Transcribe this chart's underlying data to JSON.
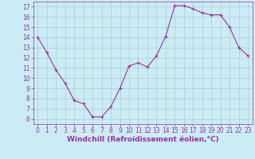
{
  "x": [
    0,
    1,
    2,
    3,
    4,
    5,
    6,
    7,
    8,
    9,
    10,
    11,
    12,
    13,
    14,
    15,
    16,
    17,
    18,
    19,
    20,
    21,
    22,
    23
  ],
  "y": [
    14,
    12.5,
    10.8,
    9.5,
    7.8,
    7.5,
    6.2,
    6.2,
    7.2,
    9.0,
    11.2,
    11.5,
    11.1,
    12.2,
    14.1,
    17.1,
    17.1,
    16.8,
    16.4,
    16.2,
    16.2,
    15.0,
    13.0,
    12.2
  ],
  "line_color": "#993399",
  "marker": "+",
  "marker_color": "#993399",
  "bg_color": "#cbecf5",
  "grid_color": "#aacccc",
  "xlabel": "Windchill (Refroidissement éolien,°C)",
  "xlabel_color": "#993399",
  "tick_color": "#993399",
  "spine_color": "#993399",
  "xlim": [
    -0.5,
    23.5
  ],
  "ylim": [
    5.5,
    17.5
  ],
  "yticks": [
    6,
    7,
    8,
    9,
    10,
    11,
    12,
    13,
    14,
    15,
    16,
    17
  ],
  "xticks": [
    0,
    1,
    2,
    3,
    4,
    5,
    6,
    7,
    8,
    9,
    10,
    11,
    12,
    13,
    14,
    15,
    16,
    17,
    18,
    19,
    20,
    21,
    22,
    23
  ],
  "linewidth": 0.8,
  "markersize": 3.5,
  "tick_fontsize": 5.5,
  "xlabel_fontsize": 6.5
}
